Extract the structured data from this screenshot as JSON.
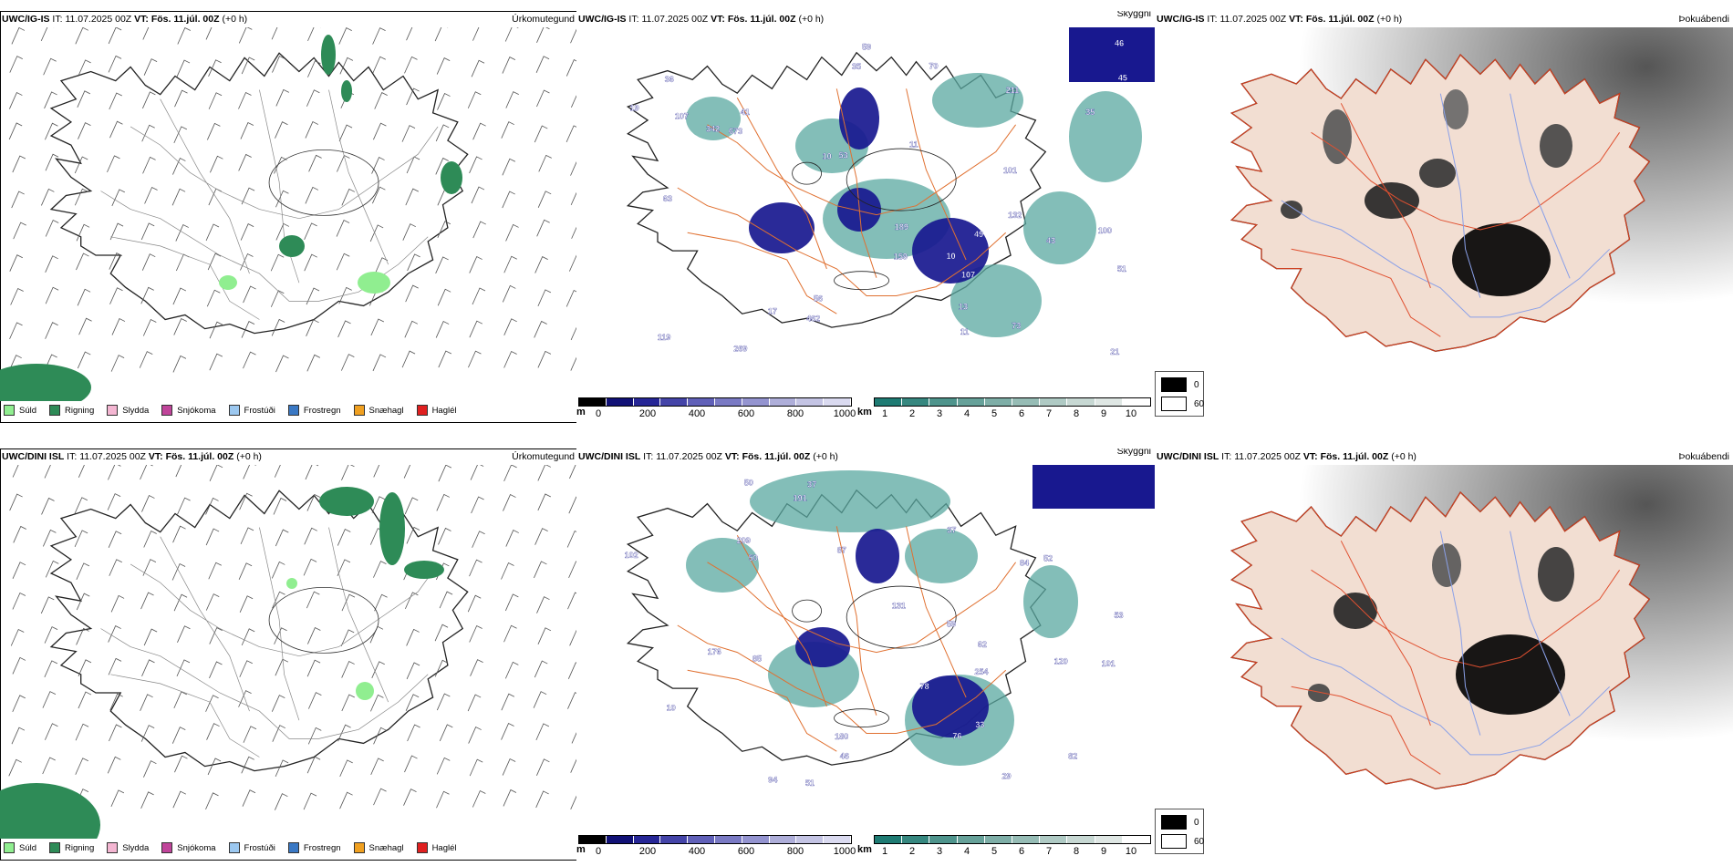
{
  "rows": [
    {
      "model": "UWC/IG-IS",
      "panels": [
        {
          "type": "precip",
          "model": "UWC/IG-IS",
          "it_label": "IT:",
          "it": "11.07.2025 00Z",
          "vt_label": "VT:",
          "vt": "Fös. 11.júl. 00Z",
          "offset": "(+0 h)",
          "title": "Úrkomutegund"
        },
        {
          "type": "clouds",
          "model": "UWC/IG-IS",
          "it_label": "IT:",
          "it": "11.07.2025 00Z",
          "vt_label": "VT:",
          "vt": "Fös. 11.júl. 00Z",
          "offset": "(+0 h)",
          "title": "Skyggni"
        },
        {
          "type": "fog",
          "model": "UWC/IG-IS",
          "it_label": "IT:",
          "it": "11.07.2025 00Z",
          "vt_label": "VT:",
          "vt": "Fös. 11.júl. 00Z",
          "offset": "(+0 h)",
          "title": "Þokuábendi"
        }
      ],
      "cloud_labels": [
        "101",
        "107",
        "119",
        "73",
        "673",
        "462",
        "13",
        "10",
        "211",
        "132",
        "11",
        "70",
        "53",
        "63",
        "269",
        "100",
        "41",
        "35",
        "49",
        "56",
        "36",
        "51",
        "43",
        "46",
        "342",
        "21",
        "19",
        "189",
        "107",
        "35",
        "59",
        "159",
        "11",
        "17",
        "10",
        "45"
      ]
    },
    {
      "model": "UWC/DINI ISL",
      "panels": [
        {
          "type": "precip",
          "model": "UWC/DINI ISL",
          "it_label": "IT:",
          "it": "11.07.2025 00Z",
          "vt_label": "VT:",
          "vt": "Fös. 11.júl. 00Z",
          "offset": "(+0 h)",
          "title": "Úrkomutegund"
        },
        {
          "type": "clouds",
          "model": "UWC/DINI ISL",
          "it_label": "IT:",
          "it": "11.07.2025 00Z",
          "vt_label": "VT:",
          "vt": "Fös. 11.júl. 00Z",
          "offset": "(+0 h)",
          "title": "Skyggni"
        },
        {
          "type": "fog",
          "model": "UWC/DINI ISL",
          "it_label": "IT:",
          "it": "11.07.2025 00Z",
          "vt_label": "VT:",
          "vt": "Fös. 11.júl. 00Z",
          "offset": "(+0 h)",
          "title": "Þokuábendi"
        }
      ],
      "cloud_labels": [
        "101",
        "76",
        "84",
        "87",
        "209",
        "94",
        "131",
        "82",
        "53",
        "59",
        "102",
        "50",
        "10",
        "120",
        "37",
        "176",
        "52",
        "33",
        "50",
        "85",
        "78",
        "37",
        "46",
        "51",
        "254",
        "62",
        "191",
        "29",
        "180"
      ]
    }
  ],
  "precip_legend": [
    {
      "label": "Súld",
      "color": "#90ee90"
    },
    {
      "label": "Rigning",
      "color": "#2e8b57"
    },
    {
      "label": "Slydda",
      "color": "#f4b6d2"
    },
    {
      "label": "Snjókoma",
      "color": "#c0449a"
    },
    {
      "label": "Frostúði",
      "color": "#9cc8f0"
    },
    {
      "label": "Frostregn",
      "color": "#3a78c4"
    },
    {
      "label": "Snæhagl",
      "color": "#f0a020"
    },
    {
      "label": "Haglél",
      "color": "#e02020"
    }
  ],
  "height_colorbar": {
    "unit": "m",
    "ticks": [
      "0",
      "200",
      "400",
      "600",
      "800",
      "1000"
    ]
  },
  "vis_colorbar": {
    "unit": "km",
    "ticks": [
      "1",
      "2",
      "3",
      "4",
      "5",
      "6",
      "7",
      "8",
      "9",
      "10"
    ]
  },
  "fog_legend": [
    {
      "label": "0"
    },
    {
      "label": "60"
    }
  ],
  "colors": {
    "rain": "#2e8b57",
    "drizzle": "#90ee90",
    "cloud": "#18188f",
    "teal": "#5aa8a0",
    "roads": "#e07030",
    "land_fog": "#f2ded2"
  }
}
